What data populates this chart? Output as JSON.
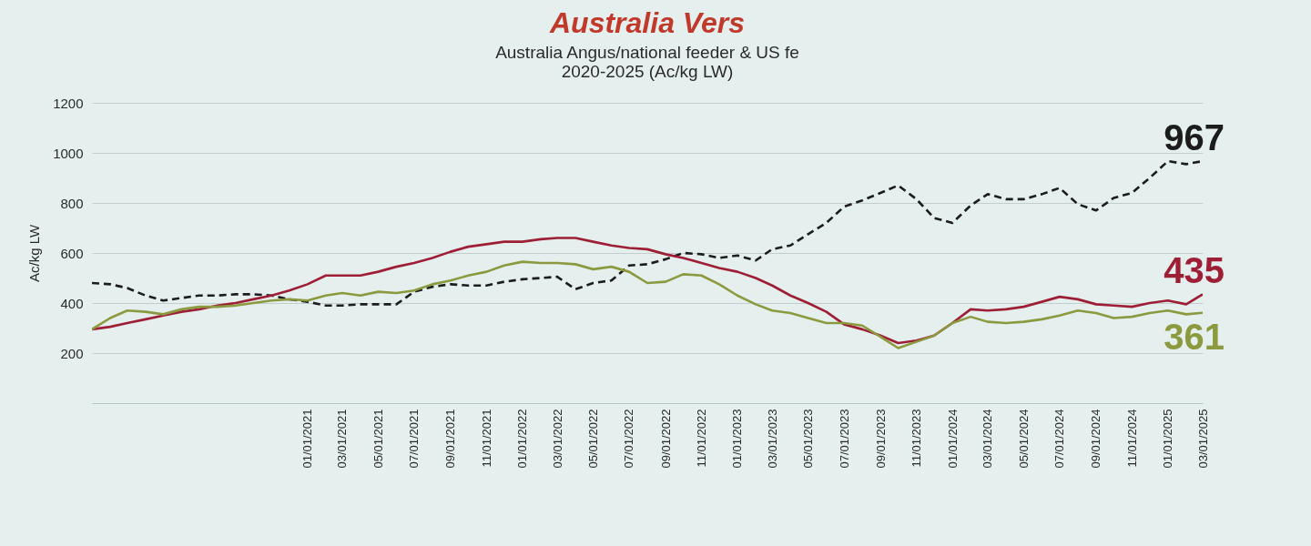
{
  "chart_data": {
    "type": "line",
    "title": "Australia Vers",
    "subtitle": "Australia Angus/national feeder & US fe\n2020-2025 (Ac/kg LW)",
    "ylabel": "Ac/kg LW",
    "x": [
      "2020-01",
      "2020-02",
      "2020-03",
      "2020-04",
      "2020-05",
      "2020-06",
      "2020-07",
      "2020-08",
      "2020-09",
      "2020-10",
      "2020-11",
      "2020-12",
      "2021-01",
      "2021-02",
      "2021-03",
      "2021-04",
      "2021-05",
      "2021-06",
      "2021-07",
      "2021-08",
      "2021-09",
      "2021-10",
      "2021-11",
      "2021-12",
      "2022-01",
      "2022-02",
      "2022-03",
      "2022-04",
      "2022-05",
      "2022-06",
      "2022-07",
      "2022-08",
      "2022-09",
      "2022-10",
      "2022-11",
      "2022-12",
      "2023-01",
      "2023-02",
      "2023-03",
      "2023-04",
      "2023-05",
      "2023-06",
      "2023-07",
      "2023-08",
      "2023-09",
      "2023-10",
      "2023-11",
      "2023-12",
      "2024-01",
      "2024-02",
      "2024-03",
      "2024-04",
      "2024-05",
      "2024-06",
      "2024-07",
      "2024-08",
      "2024-09",
      "2024-10",
      "2024-11",
      "2024-12",
      "2025-01",
      "2025-02",
      "2025-03"
    ],
    "series": [
      {
        "color": "#1c1c1c",
        "line_style": "dashed",
        "values": [
          480,
          475,
          460,
          430,
          410,
          420,
          430,
          430,
          435,
          435,
          430,
          415,
          405,
          390,
          390,
          395,
          395,
          395,
          445,
          465,
          475,
          470,
          470,
          485,
          495,
          500,
          505,
          455,
          480,
          490,
          550,
          555,
          575,
          600,
          595,
          580,
          590,
          570,
          615,
          630,
          675,
          720,
          785,
          810,
          840,
          870,
          815,
          740,
          720,
          790,
          835,
          815,
          815,
          835,
          860,
          795,
          770,
          820,
          840,
          900,
          967,
          955,
          967
        ],
        "value_labels": [
          null,
          null,
          null,
          null,
          null,
          null,
          null,
          null,
          null,
          null,
          null,
          null,
          null,
          null,
          null,
          null,
          null,
          null,
          null,
          null,
          null,
          null,
          null,
          null,
          null,
          null,
          null,
          null,
          null,
          null,
          null,
          null,
          null,
          null,
          null,
          null,
          null,
          null,
          null,
          null,
          null,
          null,
          null,
          null,
          null,
          null,
          null,
          null,
          null,
          null,
          null,
          null,
          null,
          null,
          null,
          null,
          null,
          null,
          null,
          null,
          null,
          null,
          "967"
        ]
      },
      {
        "color": "#9e1f35",
        "values": [
          295,
          305,
          320,
          335,
          350,
          365,
          375,
          390,
          400,
          415,
          430,
          450,
          475,
          510,
          510,
          510,
          525,
          545,
          560,
          580,
          605,
          625,
          635,
          645,
          645,
          655,
          660,
          660,
          645,
          630,
          620,
          615,
          595,
          580,
          560,
          540,
          525,
          500,
          470,
          430,
          400,
          365,
          315,
          295,
          270,
          240,
          250,
          270,
          320,
          375,
          370,
          375,
          385,
          405,
          425,
          415,
          395,
          390,
          385,
          400,
          410,
          395,
          435
        ],
        "value_labels": [
          null,
          null,
          null,
          null,
          null,
          null,
          null,
          null,
          null,
          null,
          null,
          null,
          null,
          null,
          null,
          null,
          null,
          null,
          null,
          null,
          null,
          null,
          null,
          null,
          null,
          null,
          null,
          null,
          null,
          null,
          null,
          null,
          null,
          null,
          null,
          null,
          null,
          null,
          null,
          null,
          null,
          null,
          null,
          null,
          null,
          null,
          null,
          null,
          null,
          null,
          null,
          null,
          null,
          null,
          null,
          null,
          null,
          null,
          null,
          null,
          null,
          null,
          "435"
        ]
      },
      {
        "color": "#8c9a3f",
        "values": [
          295,
          340,
          370,
          365,
          355,
          375,
          385,
          385,
          390,
          400,
          410,
          415,
          410,
          430,
          440,
          430,
          445,
          440,
          450,
          475,
          490,
          510,
          525,
          550,
          565,
          560,
          560,
          555,
          535,
          545,
          525,
          480,
          485,
          515,
          510,
          475,
          430,
          395,
          370,
          360,
          340,
          320,
          320,
          310,
          265,
          220,
          245,
          270,
          320,
          345,
          325,
          320,
          325,
          335,
          350,
          370,
          360,
          340,
          345,
          360,
          370,
          355,
          361
        ],
        "value_labels": [
          null,
          null,
          null,
          null,
          null,
          null,
          null,
          null,
          null,
          null,
          null,
          null,
          null,
          null,
          null,
          null,
          null,
          null,
          null,
          null,
          null,
          null,
          null,
          null,
          null,
          null,
          null,
          null,
          null,
          null,
          null,
          null,
          null,
          null,
          null,
          null,
          null,
          null,
          null,
          null,
          null,
          null,
          null,
          null,
          null,
          null,
          null,
          null,
          null,
          null,
          null,
          null,
          null,
          null,
          null,
          null,
          null,
          null,
          null,
          null,
          null,
          null,
          "361"
        ]
      }
    ],
    "line_style": "solid",
    "xlim": [
      "2020-01",
      "2025-03"
    ],
    "xticks": [
      {
        "value": "2021-01",
        "label": "01/01/2021"
      },
      {
        "value": "2021-03",
        "label": "03/01/2021"
      },
      {
        "value": "2021-05",
        "label": "05/01/2021"
      },
      {
        "value": "2021-07",
        "label": "07/01/2021"
      },
      {
        "value": "2021-09",
        "label": "09/01/2021"
      },
      {
        "value": "2021-11",
        "label": "11/01/2021"
      },
      {
        "value": "2022-01",
        "label": "01/01/2022"
      },
      {
        "value": "2022-03",
        "label": "03/01/2022"
      },
      {
        "value": "2022-05",
        "label": "05/01/2022"
      },
      {
        "value": "2022-07",
        "label": "07/01/2022"
      },
      {
        "value": "2022-09",
        "label": "09/01/2022"
      },
      {
        "value": "2022-11",
        "label": "11/01/2022"
      },
      {
        "value": "2023-01",
        "label": "01/01/2023"
      },
      {
        "value": "2023-03",
        "label": "03/01/2023"
      },
      {
        "value": "2023-05",
        "label": "05/01/2023"
      },
      {
        "value": "2023-07",
        "label": "07/01/2023"
      },
      {
        "value": "2023-09",
        "label": "09/01/2023"
      },
      {
        "value": "2023-11",
        "label": "11/01/2023"
      },
      {
        "value": "2024-01",
        "label": "01/01/2024"
      },
      {
        "value": "2024-03",
        "label": "03/01/2024"
      },
      {
        "value": "2024-05",
        "label": "05/01/2024"
      },
      {
        "value": "2024-07",
        "label": "07/01/2024"
      },
      {
        "value": "2024-09",
        "label": "09/01/2024"
      },
      {
        "value": "2024-11",
        "label": "11/01/2024"
      },
      {
        "value": "2025-01",
        "label": "01/01/2025"
      },
      {
        "value": "2025-03",
        "label": "03/01/2025"
      }
    ],
    "ylim": [
      0,
      1200
    ],
    "yticks": [
      {
        "value": 0,
        "label": null
      },
      200,
      400,
      600,
      800,
      1000,
      1200
    ],
    "grid": "y"
  }
}
